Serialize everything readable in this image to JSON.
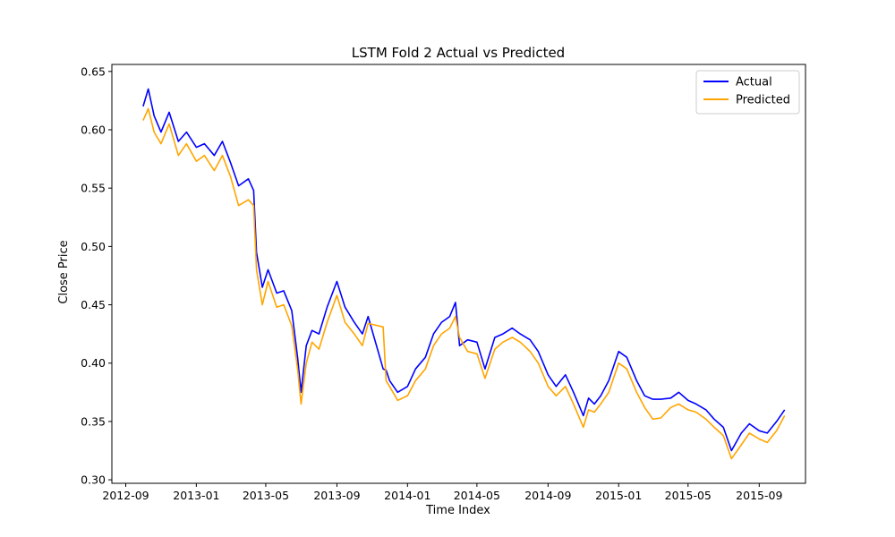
{
  "chart_data": {
    "type": "line",
    "title": "LSTM Fold 2 Actual vs Predicted",
    "xlabel": "Time Index",
    "ylabel": "Close Price",
    "xlim": [
      "2012-08-08",
      "2015-11-20"
    ],
    "ylim": [
      0.297,
      0.656
    ],
    "x_ticks": [
      "2012-09",
      "2013-01",
      "2013-05",
      "2013-09",
      "2014-01",
      "2014-05",
      "2014-09",
      "2015-01",
      "2015-05",
      "2015-09"
    ],
    "y_ticks": [
      "0.30",
      "0.35",
      "0.40",
      "0.45",
      "0.50",
      "0.55",
      "0.60",
      "0.65"
    ],
    "grid": false,
    "legend_position": "top-right",
    "x": [
      "2012-10-01",
      "2012-10-10",
      "2012-10-20",
      "2012-11-01",
      "2012-11-15",
      "2012-12-01",
      "2012-12-15",
      "2013-01-01",
      "2013-01-15",
      "2013-02-01",
      "2013-02-15",
      "2013-03-01",
      "2013-03-15",
      "2013-04-01",
      "2013-04-10",
      "2013-04-15",
      "2013-04-25",
      "2013-05-05",
      "2013-05-20",
      "2013-06-01",
      "2013-06-15",
      "2013-06-25",
      "2013-07-01",
      "2013-07-10",
      "2013-07-20",
      "2013-08-01",
      "2013-08-15",
      "2013-09-01",
      "2013-09-15",
      "2013-10-01",
      "2013-10-15",
      "2013-10-25",
      "2013-11-20",
      "2013-11-25",
      "2013-12-01",
      "2013-12-15",
      "2014-01-01",
      "2014-01-15",
      "2014-02-01",
      "2014-02-15",
      "2014-03-01",
      "2014-03-15",
      "2014-03-25",
      "2014-04-01",
      "2014-04-15",
      "2014-05-01",
      "2014-05-15",
      "2014-06-01",
      "2014-06-15",
      "2014-07-01",
      "2014-07-15",
      "2014-08-01",
      "2014-08-15",
      "2014-09-01",
      "2014-09-15",
      "2014-10-01",
      "2014-10-15",
      "2014-11-01",
      "2014-11-10",
      "2014-11-20",
      "2014-12-01",
      "2014-12-15",
      "2015-01-01",
      "2015-01-15",
      "2015-02-01",
      "2015-02-15",
      "2015-03-01",
      "2015-03-15",
      "2015-04-01",
      "2015-04-15",
      "2015-05-01",
      "2015-05-15",
      "2015-06-01",
      "2015-06-15",
      "2015-07-01",
      "2015-07-15",
      "2015-08-01",
      "2015-08-15",
      "2015-09-01",
      "2015-09-15",
      "2015-10-01",
      "2015-10-15"
    ],
    "series": [
      {
        "name": "Actual",
        "color": "#0000ff",
        "values": [
          0.62,
          0.635,
          0.612,
          0.598,
          0.615,
          0.59,
          0.598,
          0.585,
          0.588,
          0.578,
          0.59,
          0.572,
          0.552,
          0.558,
          0.548,
          0.495,
          0.465,
          0.48,
          0.46,
          0.462,
          0.445,
          0.405,
          0.375,
          0.415,
          0.428,
          0.425,
          0.448,
          0.47,
          0.448,
          0.435,
          0.425,
          0.44,
          0.395,
          0.394,
          0.385,
          0.375,
          0.38,
          0.395,
          0.405,
          0.425,
          0.435,
          0.44,
          0.452,
          0.415,
          0.42,
          0.418,
          0.395,
          0.422,
          0.425,
          0.43,
          0.425,
          0.42,
          0.41,
          0.39,
          0.38,
          0.39,
          0.375,
          0.355,
          0.37,
          0.365,
          0.372,
          0.385,
          0.41,
          0.405,
          0.385,
          0.372,
          0.369,
          0.369,
          0.37,
          0.375,
          0.368,
          0.365,
          0.36,
          0.352,
          0.345,
          0.325,
          0.34,
          0.348,
          0.342,
          0.34,
          0.35,
          0.36
        ]
      },
      {
        "name": "Predicted",
        "color": "#ffa500",
        "values": [
          0.608,
          0.618,
          0.598,
          0.588,
          0.605,
          0.578,
          0.588,
          0.573,
          0.578,
          0.565,
          0.578,
          0.56,
          0.535,
          0.54,
          0.535,
          0.48,
          0.45,
          0.47,
          0.448,
          0.45,
          0.432,
          0.395,
          0.365,
          0.4,
          0.418,
          0.412,
          0.435,
          0.458,
          0.435,
          0.425,
          0.415,
          0.434,
          0.431,
          0.385,
          0.38,
          0.368,
          0.372,
          0.385,
          0.395,
          0.415,
          0.425,
          0.43,
          0.44,
          0.422,
          0.41,
          0.408,
          0.387,
          0.412,
          0.418,
          0.422,
          0.418,
          0.41,
          0.4,
          0.38,
          0.372,
          0.38,
          0.365,
          0.345,
          0.36,
          0.358,
          0.365,
          0.375,
          0.4,
          0.395,
          0.375,
          0.362,
          0.352,
          0.353,
          0.362,
          0.365,
          0.36,
          0.358,
          0.352,
          0.345,
          0.338,
          0.318,
          0.33,
          0.34,
          0.335,
          0.332,
          0.342,
          0.355
        ]
      }
    ]
  }
}
